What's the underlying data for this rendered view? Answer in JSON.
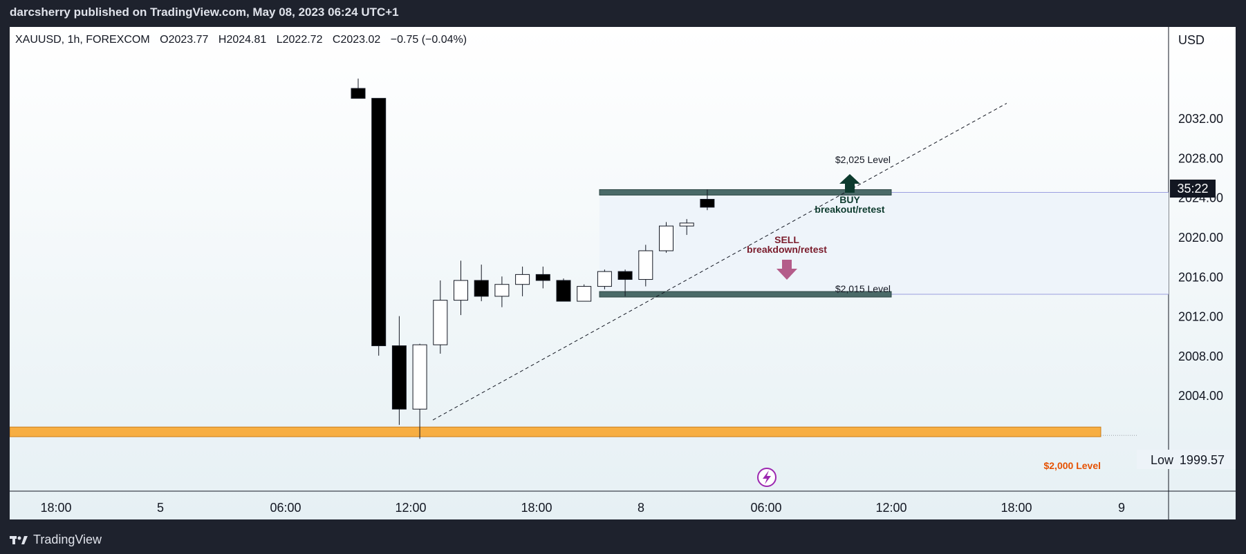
{
  "header": {
    "published_text": "darcsherry published on TradingView.com, May 08, 2023 06:24 UTC+1"
  },
  "footer": {
    "brand": "TradingView"
  },
  "legend": {
    "symbol": "XAUUSD, 1h, FOREXCOM",
    "open": "O2023.77",
    "high": "H2024.81",
    "low": "L2022.72",
    "close": "C2023.02",
    "change": "−0.75 (−0.04%)"
  },
  "price_axis": {
    "currency": "USD",
    "countdown": "35:22",
    "low_label": "Low",
    "low_value": "1999.57"
  },
  "annotations": {
    "level_top": "$2,025 Level",
    "level_bottom": "$2,015 Level",
    "level_2000": "$2,000 Level",
    "buy_line1": "BUY",
    "buy_line2": "breakout/retest",
    "sell_line1": "SELL",
    "sell_line2": "breakdown/retest"
  },
  "colors": {
    "bull_body": "#ffffff",
    "bear_body": "#000000",
    "level_bar": "#4a6a68",
    "zone_fill": "#eef4fa",
    "support_bar": "#f7ae42",
    "buy_arrow": "#0d3b2e",
    "sell_arrow": "#b45c8a",
    "buy_text": "#0d3b2e",
    "sell_text": "#7a1b2b",
    "level_2000_text": "#e65100"
  },
  "chart_data": {
    "type": "candlestick",
    "symbol": "XAUUSD",
    "timeframe": "1h",
    "x_ticks": [
      "18:00",
      "5",
      "06:00",
      "12:00",
      "18:00",
      "8",
      "06:00",
      "12:00",
      "18:00",
      "9"
    ],
    "y_ticks": [
      2004,
      2008,
      2012,
      2016,
      2020,
      2024,
      2028,
      2032
    ],
    "y_tick_labels": [
      "2004.00",
      "2008.00",
      "2012.00",
      "2016.00",
      "2020.00",
      "2024.00",
      "2028.00",
      "2032.00"
    ],
    "ylim": [
      1996.9,
      2036.0
    ],
    "candles": [
      {
        "slot": 0,
        "o": 2035.0,
        "h": 2036.0,
        "l": 2034.0,
        "c": 2034.0
      },
      {
        "slot": 1,
        "o": 2034.0,
        "h": 2034.0,
        "l": 2008.0,
        "c": 2009.0
      },
      {
        "slot": 2,
        "o": 2009.0,
        "h": 2012.0,
        "l": 2001.0,
        "c": 2002.6
      },
      {
        "slot": 3,
        "o": 2002.6,
        "h": 2009.2,
        "l": 1999.6,
        "c": 2009.1
      },
      {
        "slot": 4,
        "o": 2009.1,
        "h": 2015.6,
        "l": 2008.2,
        "c": 2013.6
      },
      {
        "slot": 5,
        "o": 2013.6,
        "h": 2017.6,
        "l": 2012.1,
        "c": 2015.6
      },
      {
        "slot": 6,
        "o": 2015.6,
        "h": 2017.2,
        "l": 2013.5,
        "c": 2014.0
      },
      {
        "slot": 7,
        "o": 2014.0,
        "h": 2016.0,
        "l": 2012.9,
        "c": 2015.2
      },
      {
        "slot": 8,
        "o": 2015.2,
        "h": 2017.0,
        "l": 2014.0,
        "c": 2016.2
      },
      {
        "slot": 9,
        "o": 2016.2,
        "h": 2017.0,
        "l": 2014.8,
        "c": 2015.6
      },
      {
        "slot": 10,
        "o": 2015.6,
        "h": 2015.8,
        "l": 2013.5,
        "c": 2013.5
      },
      {
        "slot": 11,
        "o": 2013.5,
        "h": 2015.2,
        "l": 2013.5,
        "c": 2015.0
      },
      {
        "slot": 12,
        "o": 2015.0,
        "h": 2016.7,
        "l": 2014.7,
        "c": 2016.5
      },
      {
        "slot": 13,
        "o": 2016.5,
        "h": 2016.7,
        "l": 2014.0,
        "c": 2015.7
      },
      {
        "slot": 14,
        "o": 2015.7,
        "h": 2019.2,
        "l": 2015.0,
        "c": 2018.6
      },
      {
        "slot": 15,
        "o": 2018.6,
        "h": 2021.5,
        "l": 2018.4,
        "c": 2021.1
      },
      {
        "slot": 16,
        "o": 2021.1,
        "h": 2021.8,
        "l": 2020.2,
        "c": 2021.4
      },
      {
        "slot": 17,
        "o": 2023.8,
        "h": 2024.8,
        "l": 2022.7,
        "c": 2023.0
      }
    ],
    "levels": {
      "top_band": 2024.5,
      "bottom_band": 2014.2,
      "support": 1999.57
    },
    "low": 1999.57
  }
}
